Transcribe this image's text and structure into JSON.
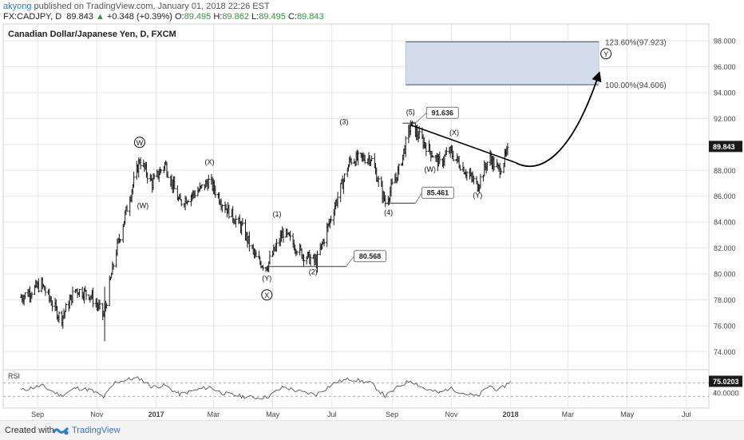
{
  "header": {
    "author": "akyong",
    "published_text": "published on TradingView.com, January 01, 2018 22:26 EST",
    "symbol_line": "FX:CADJPY, D",
    "last_value": "89.843",
    "change": "+0.348 (+0.39%)",
    "o_label": "O:",
    "o_value": "89.495",
    "h_label": "H:",
    "h_value": "89.862",
    "l_label": "L:",
    "l_value": "89.495",
    "c_label": "C:",
    "c_value": "89.843"
  },
  "footer": {
    "created_with": "Created with",
    "brand": "TradingView"
  },
  "colors": {
    "bar": "#1a1a1a",
    "projection_box": "#d3dcea",
    "price_tag": "#1a1a1a",
    "grid": "#e6e6e6",
    "brand": "#2a7bd6"
  },
  "chart_data": {
    "type": "ohlc",
    "title": "Canadian Dollar/Japanese Yen, D, FXCM",
    "last_price_label": "89.843",
    "x_ticks": [
      "Sep",
      "Nov",
      "2017",
      "Mar",
      "May",
      "Jul",
      "Sep",
      "Nov",
      "2018",
      "Mar",
      "May",
      "Jul"
    ],
    "y_ticks": [
      "98.000",
      "96.000",
      "94.000",
      "92.000",
      "90.000",
      "88.000",
      "86.000",
      "84.000",
      "82.000",
      "80.000",
      "78.000",
      "76.000",
      "74.000"
    ],
    "ylim": [
      72.6,
      99.3
    ],
    "grid": true,
    "price_path": [
      {
        "date": "2016-08-15",
        "price": 78.2
      },
      {
        "date": "2016-09-05",
        "price": 79.2
      },
      {
        "date": "2016-09-25",
        "price": 76.5
      },
      {
        "date": "2016-10-10",
        "price": 78.8
      },
      {
        "date": "2016-10-25",
        "price": 78.4
      },
      {
        "date": "2016-11-08",
        "price": 76.8
      },
      {
        "date": "2016-11-20",
        "price": 81.5
      },
      {
        "date": "2016-12-05",
        "price": 86.0
      },
      {
        "date": "2016-12-15",
        "price": 88.8
      },
      {
        "date": "2016-12-28",
        "price": 87.0
      },
      {
        "date": "2017-01-10",
        "price": 88.5
      },
      {
        "date": "2017-01-25",
        "price": 85.5
      },
      {
        "date": "2017-02-15",
        "price": 86.5
      },
      {
        "date": "2017-02-25",
        "price": 87.2
      },
      {
        "date": "2017-03-10",
        "price": 85.5
      },
      {
        "date": "2017-03-31",
        "price": 83.5
      },
      {
        "date": "2017-04-15",
        "price": 81.0
      },
      {
        "date": "2017-04-25",
        "price": 80.6
      },
      {
        "date": "2017-05-12",
        "price": 83.2
      },
      {
        "date": "2017-06-01",
        "price": 81.5
      },
      {
        "date": "2017-06-15",
        "price": 80.9
      },
      {
        "date": "2017-07-05",
        "price": 85.5
      },
      {
        "date": "2017-07-20",
        "price": 88.8
      },
      {
        "date": "2017-08-10",
        "price": 89.0
      },
      {
        "date": "2017-08-25",
        "price": 85.5
      },
      {
        "date": "2017-09-08",
        "price": 88.0
      },
      {
        "date": "2017-09-20",
        "price": 91.5
      },
      {
        "date": "2017-10-05",
        "price": 90.0
      },
      {
        "date": "2017-10-20",
        "price": 88.5
      },
      {
        "date": "2017-10-30",
        "price": 89.5
      },
      {
        "date": "2017-11-15",
        "price": 88.0
      },
      {
        "date": "2017-11-28",
        "price": 86.8
      },
      {
        "date": "2017-12-10",
        "price": 89.0
      },
      {
        "date": "2017-12-20",
        "price": 88.0
      },
      {
        "date": "2018-01-01",
        "price": 89.85
      }
    ],
    "wave_labels": [
      {
        "text": "W",
        "circled": true,
        "date": "2016-12-15",
        "price": 88.8
      },
      {
        "text": "(W)",
        "date": "2016-12-15",
        "price": 88.8
      },
      {
        "text": "(X)",
        "date": "2017-02-25",
        "price": 87.2
      },
      {
        "text": "(Y)",
        "date": "2017-04-25",
        "price": 80.6
      },
      {
        "text": "X",
        "circled": true,
        "date": "2017-04-25",
        "price": 80.6
      },
      {
        "text": "(1)",
        "date": "2017-05-12",
        "price": 83.2
      },
      {
        "text": "(2)",
        "date": "2017-06-15",
        "price": 80.9
      },
      {
        "text": "(3)",
        "date": "2017-07-20",
        "price": 88.8
      },
      {
        "text": "(4)",
        "date": "2017-08-25",
        "price": 85.5
      },
      {
        "text": "(5)",
        "date": "2017-09-20",
        "price": 91.5
      },
      {
        "text": "(W)",
        "date": "2017-10-20",
        "price": 88.5
      },
      {
        "text": "(X)",
        "date": "2017-10-30",
        "price": 89.5
      },
      {
        "text": "(Y)",
        "date": "2017-11-28",
        "price": 86.8
      },
      {
        "text": "Y",
        "circled": true,
        "date": "2018-04-01",
        "price": 97.0
      }
    ],
    "price_callouts": [
      {
        "text": "80.568",
        "price": 80.568,
        "date": "2017-04-25"
      },
      {
        "text": "91.636",
        "price": 91.636,
        "date": "2017-09-20"
      },
      {
        "text": "85.461",
        "price": 85.461,
        "date": "2017-08-25"
      }
    ],
    "projection": {
      "top_label": "123.60%(97.923)",
      "top": 97.923,
      "bottom_label": "100.00%(94.606)",
      "bottom": 94.606
    },
    "trendline": {
      "from": {
        "date": "2017-09-20",
        "price": 91.5
      },
      "to": {
        "date": "2018-01-01",
        "price": 88.6
      }
    },
    "rsi": {
      "label": "RSI",
      "value_label": "75.0203",
      "level_label": "40.0000",
      "ylim": [
        0,
        100
      ],
      "series": [
        {
          "date": "2016-08-15",
          "value": 48
        },
        {
          "date": "2016-09-05",
          "value": 62
        },
        {
          "date": "2016-09-25",
          "value": 32
        },
        {
          "date": "2016-10-10",
          "value": 55
        },
        {
          "date": "2016-10-25",
          "value": 50
        },
        {
          "date": "2016-11-08",
          "value": 28
        },
        {
          "date": "2016-11-20",
          "value": 72
        },
        {
          "date": "2016-12-05",
          "value": 82
        },
        {
          "date": "2016-12-15",
          "value": 84
        },
        {
          "date": "2016-12-28",
          "value": 58
        },
        {
          "date": "2017-01-10",
          "value": 63
        },
        {
          "date": "2017-01-25",
          "value": 36
        },
        {
          "date": "2017-02-15",
          "value": 52
        },
        {
          "date": "2017-02-25",
          "value": 58
        },
        {
          "date": "2017-03-10",
          "value": 40
        },
        {
          "date": "2017-03-31",
          "value": 30
        },
        {
          "date": "2017-04-15",
          "value": 26
        },
        {
          "date": "2017-04-25",
          "value": 28
        },
        {
          "date": "2017-05-12",
          "value": 58
        },
        {
          "date": "2017-06-01",
          "value": 42
        },
        {
          "date": "2017-06-15",
          "value": 36
        },
        {
          "date": "2017-07-05",
          "value": 72
        },
        {
          "date": "2017-07-20",
          "value": 82
        },
        {
          "date": "2017-08-10",
          "value": 70
        },
        {
          "date": "2017-08-25",
          "value": 30
        },
        {
          "date": "2017-09-08",
          "value": 60
        },
        {
          "date": "2017-09-20",
          "value": 78
        },
        {
          "date": "2017-10-05",
          "value": 52
        },
        {
          "date": "2017-10-20",
          "value": 40
        },
        {
          "date": "2017-10-30",
          "value": 55
        },
        {
          "date": "2017-11-15",
          "value": 38
        },
        {
          "date": "2017-11-28",
          "value": 30
        },
        {
          "date": "2017-12-10",
          "value": 62
        },
        {
          "date": "2017-12-20",
          "value": 48
        },
        {
          "date": "2018-01-01",
          "value": 75
        }
      ]
    }
  }
}
